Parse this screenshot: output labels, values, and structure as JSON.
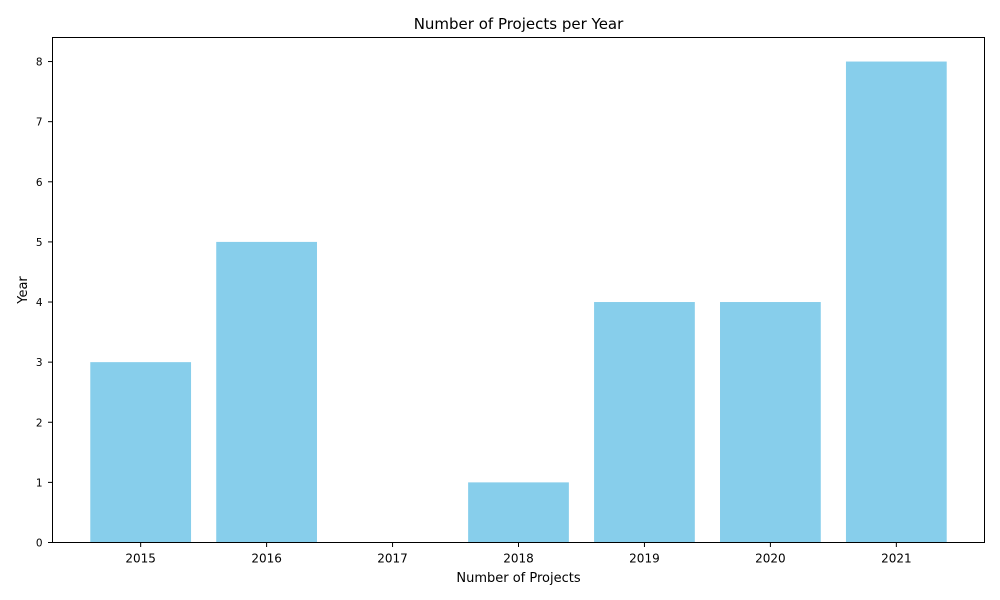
{
  "chart_data": {
    "type": "bar",
    "title": "Number of Projects per Year",
    "xlabel": "Number of Projects",
    "ylabel": "Year",
    "categories": [
      "2015",
      "2016",
      "2017",
      "2018",
      "2019",
      "2020",
      "2021"
    ],
    "values": [
      3,
      5,
      0,
      1,
      4,
      4,
      8
    ],
    "ylim": [
      0,
      8.4
    ],
    "yticks": [
      0,
      1,
      2,
      3,
      4,
      5,
      6,
      7,
      8
    ],
    "bar_color": "#87CEEB",
    "grid": false,
    "legend": "none"
  }
}
